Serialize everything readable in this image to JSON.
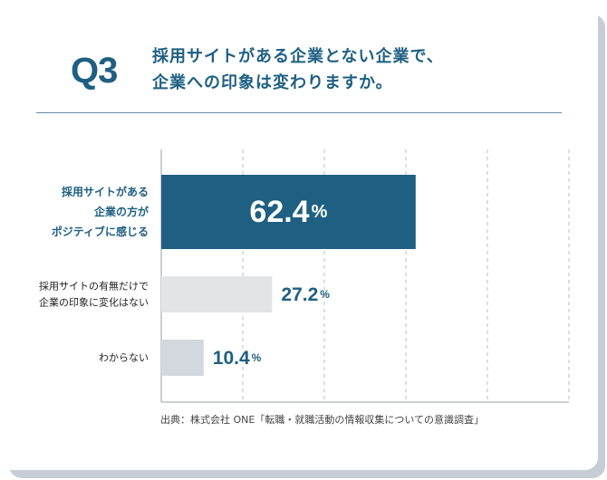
{
  "header": {
    "q_number": "Q3",
    "question_text": "採用サイトがある企業とない企業で、\n企業への印象は変わりますか。"
  },
  "chart_data": {
    "type": "bar",
    "orientation": "horizontal",
    "categories": [
      "採用サイトがある\n企業の方が\nポジティブに感じる",
      "採用サイトの有無だけで\n企業の印象に変化はない",
      "わからない"
    ],
    "values": [
      62.4,
      27.2,
      10.4
    ],
    "value_labels": [
      "62.4",
      "27.2",
      "10.4"
    ],
    "unit": "%",
    "xlim": [
      0,
      100
    ],
    "grid": true,
    "colors": {
      "highlight": "#1e5f82",
      "neutral": "#e3e4e5",
      "muted": "#d2d8dd",
      "text_dark": "#1e5f82",
      "text_light": "#ffffff"
    }
  },
  "source": {
    "text": "出典：株式会社 ONE「転職・就職活動の情報収集についての意識調査」"
  }
}
